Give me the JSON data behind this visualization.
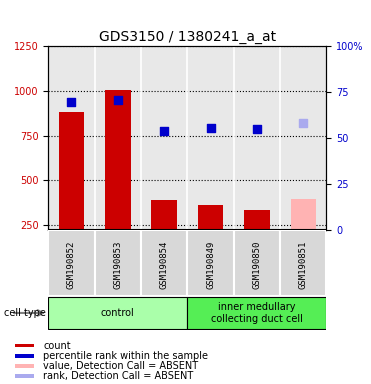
{
  "title": "GDS3150 / 1380241_a_at",
  "samples": [
    "GSM190852",
    "GSM190853",
    "GSM190854",
    "GSM190849",
    "GSM190850",
    "GSM190851"
  ],
  "bar_values": [
    880,
    1005,
    390,
    360,
    335,
    395
  ],
  "bar_colors": [
    "#cc0000",
    "#cc0000",
    "#cc0000",
    "#cc0000",
    "#cc0000",
    "#ffb3b3"
  ],
  "dot_values": [
    935,
    950,
    775,
    795,
    785,
    820
  ],
  "dot_colors": [
    "#0000cc",
    "#0000cc",
    "#0000cc",
    "#0000cc",
    "#0000cc",
    "#aaaaee"
  ],
  "left_ylim": [
    220,
    1250
  ],
  "left_yticks": [
    250,
    500,
    750,
    1000,
    1250
  ],
  "right_yticks": [
    0,
    25,
    50,
    75,
    100
  ],
  "right_yticklabels": [
    "0",
    "25",
    "50",
    "75",
    "100%"
  ],
  "groups": [
    {
      "label": "control",
      "start": 0,
      "end": 2,
      "color": "#aaffaa"
    },
    {
      "label": "inner medullary\ncollecting duct cell",
      "start": 3,
      "end": 5,
      "color": "#55ee55"
    }
  ],
  "cell_type_label": "cell type",
  "legend_items": [
    {
      "color": "#cc0000",
      "label": "count"
    },
    {
      "color": "#0000cc",
      "label": "percentile rank within the sample"
    },
    {
      "color": "#ffb3b3",
      "label": "value, Detection Call = ABSENT"
    },
    {
      "color": "#aaaaee",
      "label": "rank, Detection Call = ABSENT"
    }
  ],
  "title_fontsize": 10,
  "tick_fontsize": 7,
  "label_fontsize": 8,
  "legend_fontsize": 7,
  "bar_width": 0.55,
  "dot_size": 35
}
